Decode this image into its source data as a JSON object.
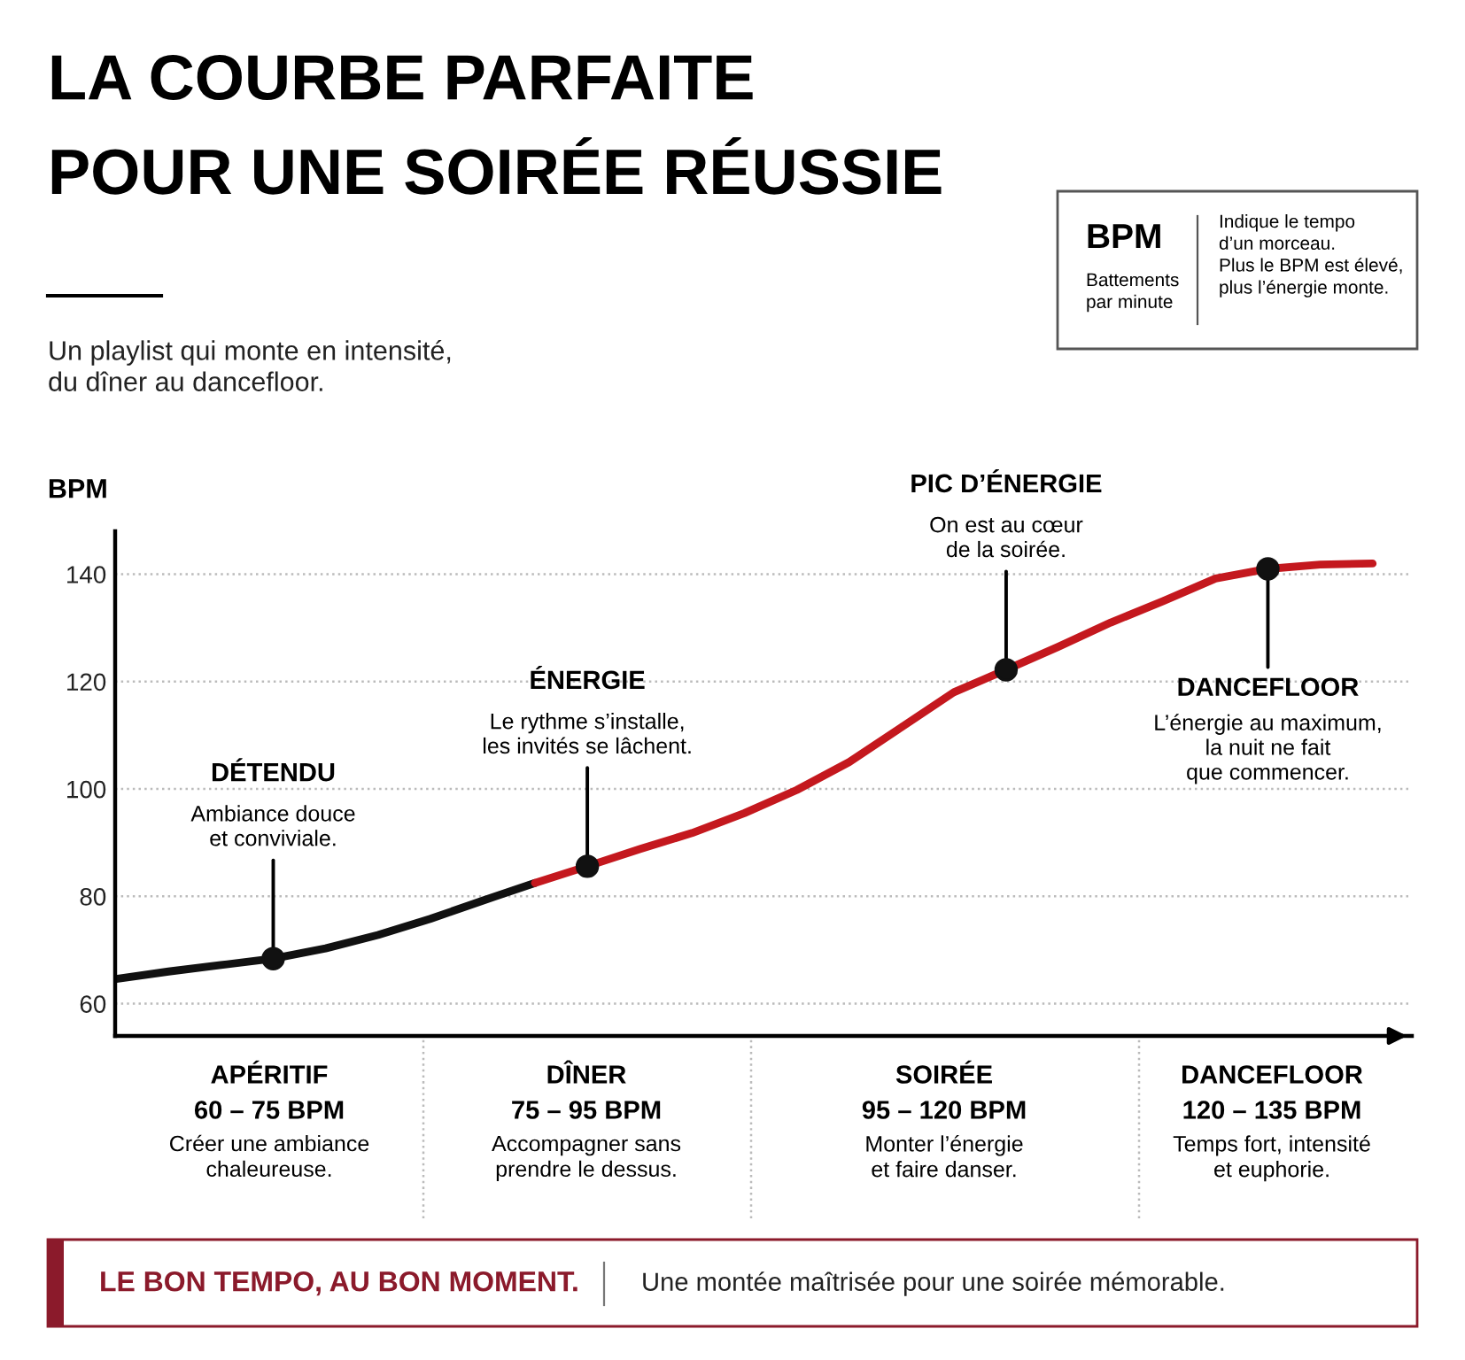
{
  "chart_data": {
    "type": "line",
    "title": "LA COURBE PARFAITE\nPOUR UNE SOIRÉE RÉUSSIE",
    "subtitle": "Un playlist qui monte en intensité,\ndu dîner au dancefloor.",
    "ylabel": "BPM",
    "categories": [
      null,
      null,
      null,
      null,
      null,
      null,
      null,
      null,
      null,
      null,
      null,
      null,
      null,
      null,
      null,
      null,
      null,
      null,
      null,
      null,
      null,
      null,
      null,
      null,
      null
    ],
    "series": [
      {
        "color": "#111111",
        "values": [
          64.6,
          66.0,
          67.2,
          68.4,
          70.3,
          72.8,
          75.8,
          79.2,
          82.5,
          null,
          null,
          null,
          null,
          null,
          null,
          null,
          null,
          null,
          null,
          null,
          null,
          null,
          null,
          null,
          null
        ]
      },
      {
        "color": "#c4181e",
        "values": [
          null,
          null,
          null,
          null,
          null,
          null,
          null,
          null,
          82.5,
          85.6,
          88.8,
          91.8,
          95.5,
          99.8,
          105,
          111.5,
          118,
          122.2,
          126.5,
          131,
          135,
          139.2,
          141,
          141.8,
          142
        ]
      },
      {
        "type": "scatter",
        "color": "#111111",
        "marker": "circle",
        "values": [
          null,
          null,
          null,
          68.4,
          null,
          null,
          null,
          null,
          null,
          85.6,
          null,
          null,
          null,
          null,
          null,
          null,
          null,
          122.2,
          null,
          null,
          null,
          null,
          141,
          null,
          null
        ]
      }
    ],
    "ylim": [
      54,
      148
    ],
    "yticks": [
      60,
      80,
      100,
      120,
      140
    ],
    "grid": "y",
    "tick_labels": "y",
    "annotations": [
      "DÉTENDU",
      "Ambiance douce\net conviviale.",
      "ÉNERGIE",
      "Le rythme s’installe,\nles invités se lâchent.",
      "PIC D’ÉNERGIE",
      "On est au cœur\nde la soirée.",
      "DANCEFLOOR",
      "L’énergie au maximum,\nla nuit ne fait\nque commencer.",
      "APÉRITIF",
      "60 – 75 BPM",
      "Créer une ambiance\nchaleureuse.",
      "DÎNER",
      "75 – 95 BPM",
      "Accompagner sans\nprendre le dessus.",
      "SOIRÉE",
      "95 – 120 BPM",
      "Monter l’énergie\net faire danser.",
      "DANCEFLOOR",
      "120 – 135 BPM",
      "Temps fort, intensité\net euphorie.",
      "BPM",
      "Battements\npar minute",
      "Indique le tempo\nd’un morceau.\nPlus le BPM est élevé,\nplus l’énergie monte.",
      "LE BON TEMPO, AU BON MOMENT.",
      "Une montée maîtrisée pour une soirée mémorable."
    ]
  }
}
